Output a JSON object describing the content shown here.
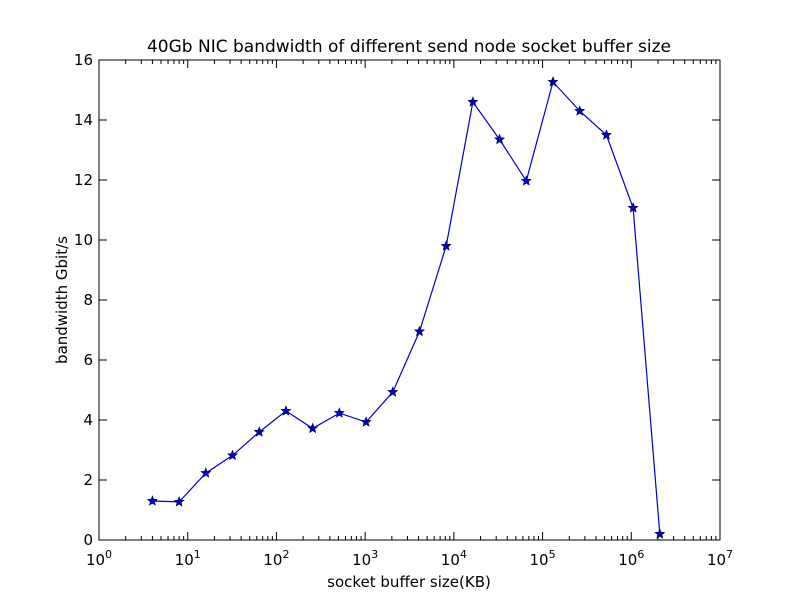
{
  "chart_data": {
    "type": "line",
    "title": "40Gb NIC bandwidth of different send node socket buffer size",
    "xlabel": "socket buffer size(KB)",
    "ylabel": "bandwidth Gbit/s",
    "xscale": "log",
    "xlim": [
      1,
      10000000
    ],
    "ylim": [
      0,
      16
    ],
    "x_ticks": [
      {
        "base": "10",
        "exp": "0",
        "value": 1
      },
      {
        "base": "10",
        "exp": "1",
        "value": 10
      },
      {
        "base": "10",
        "exp": "2",
        "value": 100
      },
      {
        "base": "10",
        "exp": "3",
        "value": 1000
      },
      {
        "base": "10",
        "exp": "4",
        "value": 10000
      },
      {
        "base": "10",
        "exp": "5",
        "value": 100000
      },
      {
        "base": "10",
        "exp": "6",
        "value": 1000000
      },
      {
        "base": "10",
        "exp": "7",
        "value": 10000000
      }
    ],
    "y_ticks": [
      "0",
      "2",
      "4",
      "6",
      "8",
      "10",
      "12",
      "14",
      "16"
    ],
    "grid": false,
    "series": [
      {
        "color": "#0000cc",
        "marker": "star",
        "x": [
          4,
          8,
          16,
          32,
          64,
          128,
          256,
          512,
          1024,
          2048,
          4096,
          8192,
          16384,
          32768,
          65536,
          131072,
          262144,
          524288,
          1048576,
          2097152
        ],
        "y": [
          1.3,
          1.27,
          2.23,
          2.82,
          3.6,
          4.3,
          3.72,
          4.23,
          3.93,
          4.93,
          6.95,
          9.8,
          14.6,
          13.35,
          11.97,
          15.27,
          14.3,
          13.5,
          11.07,
          0.2
        ]
      }
    ]
  }
}
